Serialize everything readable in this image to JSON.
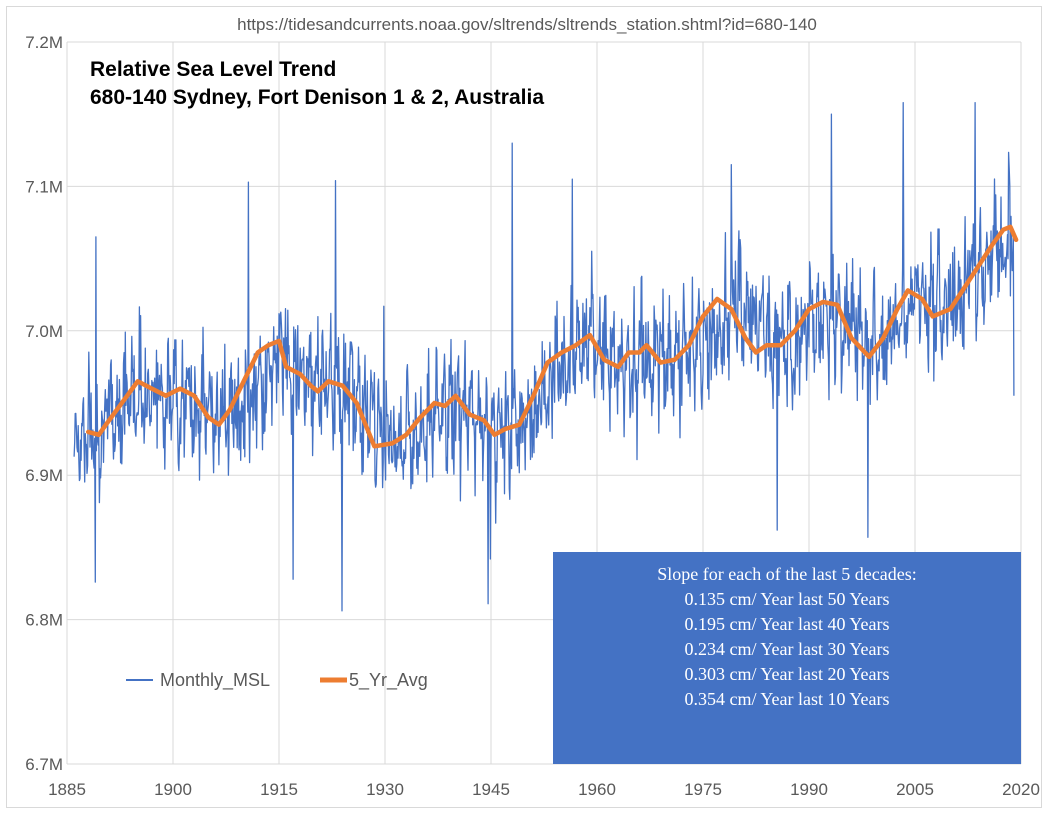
{
  "source_url": "https://tidesandcurrents.noaa.gov/sltrends/sltrends_station.shtml?id=680-140",
  "chart_data": {
    "type": "line",
    "title_line1": "Relative Sea Level Trend",
    "title_line2": "680-140 Sydney, Fort Denison 1 & 2, Australia",
    "xlabel": "",
    "ylabel": "",
    "xlim": [
      1885,
      2020
    ],
    "ylim": [
      6.7,
      7.2
    ],
    "x_ticks": [
      1885,
      1900,
      1915,
      1930,
      1945,
      1960,
      1975,
      1990,
      2005,
      2020
    ],
    "x_tick_labels": [
      "1885",
      "1900",
      "1915",
      "1930",
      "1945",
      "1960",
      "1975",
      "1990",
      "2005",
      "2020"
    ],
    "y_ticks": [
      6.7,
      6.8,
      6.9,
      7.0,
      7.1,
      7.2
    ],
    "y_tick_labels": [
      "6.7M",
      "6.8M",
      "6.9M",
      "7.0M",
      "7.1M",
      "7.2M"
    ],
    "grid": true,
    "legend_placement": "bottom-left",
    "monthly_start": 1886.0,
    "monthly_end": 2019.0,
    "series": [
      {
        "name": "Monthly_MSL",
        "color": "#4472c4",
        "envelope_x": [
          1886,
          1890,
          1895,
          1900,
          1905,
          1910,
          1915,
          1920,
          1925,
          1930,
          1935,
          1940,
          1945,
          1950,
          1955,
          1960,
          1965,
          1970,
          1975,
          1980,
          1985,
          1990,
          1995,
          2000,
          2005,
          2010,
          2015,
          2019
        ],
        "envelope_mean": [
          6.925,
          6.935,
          6.962,
          6.955,
          6.945,
          6.94,
          6.985,
          6.97,
          6.96,
          6.922,
          6.935,
          6.948,
          6.93,
          6.935,
          6.98,
          6.99,
          6.975,
          6.985,
          6.985,
          7.02,
          6.99,
          7.005,
          7.01,
          6.99,
          7.025,
          7.015,
          7.05,
          7.07
        ],
        "envelope_amplitude": 0.055,
        "peaks": [
          {
            "x": 1889.1,
            "y": 7.065
          },
          {
            "x": 1889.0,
            "y": 6.826
          },
          {
            "x": 1910.7,
            "y": 7.103
          },
          {
            "x": 1917.0,
            "y": 6.828
          },
          {
            "x": 1923.0,
            "y": 7.104
          },
          {
            "x": 1923.9,
            "y": 6.806
          },
          {
            "x": 1929.8,
            "y": 7.017
          },
          {
            "x": 1944.6,
            "y": 6.811
          },
          {
            "x": 1944.9,
            "y": 6.842
          },
          {
            "x": 1948.0,
            "y": 7.13
          },
          {
            "x": 1956.5,
            "y": 7.105
          },
          {
            "x": 1979.0,
            "y": 7.115
          },
          {
            "x": 1985.5,
            "y": 6.862
          },
          {
            "x": 1993.2,
            "y": 7.15
          },
          {
            "x": 1998.3,
            "y": 6.857
          },
          {
            "x": 2003.3,
            "y": 7.158
          },
          {
            "x": 2013.5,
            "y": 7.158
          },
          {
            "x": 2019.0,
            "y": 6.955
          }
        ]
      },
      {
        "name": "5_Yr_Avg",
        "color": "#ed7d31",
        "x": [
          1888.0,
          1889.5,
          1890.5,
          1893.5,
          1895.0,
          1897.0,
          1899.0,
          1901.0,
          1903.0,
          1905.0,
          1906.5,
          1908.0,
          1910.0,
          1912.0,
          1913.5,
          1915.0,
          1916.0,
          1918.0,
          1919.5,
          1920.5,
          1922.0,
          1924.0,
          1926.0,
          1928.5,
          1931.0,
          1933.0,
          1935.0,
          1937.0,
          1938.5,
          1940.0,
          1942.0,
          1944.0,
          1945.5,
          1947.0,
          1949.0,
          1951.0,
          1953.0,
          1955.0,
          1957.0,
          1959.0,
          1961.0,
          1963.0,
          1964.5,
          1966.0,
          1967.0,
          1969.0,
          1971.0,
          1973.0,
          1975.0,
          1977.0,
          1979.0,
          1981.0,
          1982.5,
          1984.0,
          1986.0,
          1988.0,
          1990.0,
          1992.0,
          1994.0,
          1996.0,
          1998.5,
          2000.5,
          2002.5,
          2004.0,
          2006.0,
          2007.5,
          2010.0,
          2012.0,
          2014.0,
          2016.0,
          2017.5,
          2018.5,
          2019.3
        ],
        "y": [
          6.93,
          6.928,
          6.935,
          6.955,
          6.965,
          6.96,
          6.955,
          6.96,
          6.955,
          6.94,
          6.935,
          6.945,
          6.965,
          6.985,
          6.99,
          6.993,
          6.975,
          6.97,
          6.962,
          6.958,
          6.965,
          6.962,
          6.95,
          6.92,
          6.922,
          6.928,
          6.94,
          6.95,
          6.948,
          6.955,
          6.942,
          6.938,
          6.928,
          6.932,
          6.935,
          6.955,
          6.978,
          6.985,
          6.99,
          6.997,
          6.98,
          6.975,
          6.985,
          6.985,
          6.99,
          6.978,
          6.98,
          6.99,
          7.01,
          7.022,
          7.015,
          6.995,
          6.985,
          6.99,
          6.99,
          7.0,
          7.015,
          7.02,
          7.018,
          6.995,
          6.982,
          6.995,
          7.015,
          7.028,
          7.022,
          7.01,
          7.015,
          7.03,
          7.045,
          7.06,
          7.07,
          7.072,
          7.063
        ]
      }
    ],
    "annotation": {
      "lines": [
        "Slope for each of the last 5 decades:",
        "0.135 cm/ Year last 50 Years",
        "0.195 cm/ Year last 40 Years",
        "0.234 cm/ Year last 30 Years",
        "0.303 cm/ Year last 20 Years",
        "0.354 cm/ Year last 10 Years"
      ],
      "background": "#4472c4",
      "text_color": "#ffffff"
    }
  }
}
